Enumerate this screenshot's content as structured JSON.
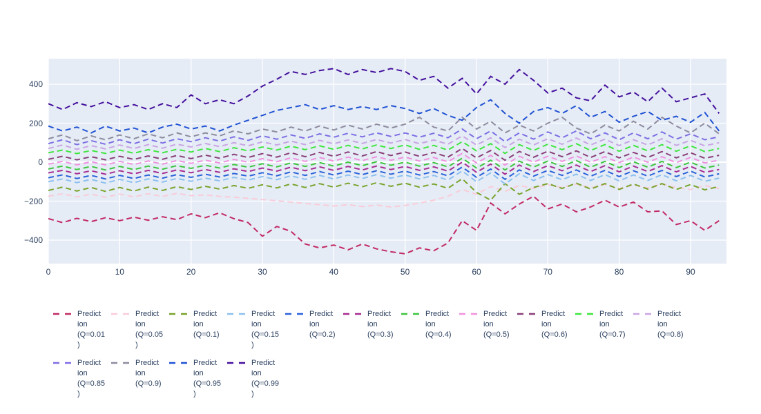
{
  "figure": {
    "plot_bg_color": "#e5ecf6",
    "grid_color": "#ffffff",
    "axis_font_color": "#2a3f5f",
    "paper_color": "#ffffff"
  },
  "chart_data": {
    "type": "line",
    "title": "",
    "xlabel": "",
    "ylabel": "",
    "line_style": "dashed",
    "legend_position": "bottom",
    "grid": true,
    "xlim": [
      0,
      95
    ],
    "ylim": [
      -520,
      531
    ],
    "x_ticks": [
      "0",
      "10",
      "20",
      "30",
      "40",
      "50",
      "60",
      "70",
      "80",
      "90"
    ],
    "x_tick_values": [
      0,
      10,
      20,
      30,
      40,
      50,
      60,
      70,
      80,
      90
    ],
    "y_ticks": [
      "400",
      "200",
      "0",
      "−200",
      "−400"
    ],
    "y_tick_values": [
      400,
      200,
      0,
      -200,
      -400
    ],
    "x": [
      0,
      2,
      4,
      6,
      8,
      10,
      12,
      14,
      16,
      18,
      20,
      22,
      24,
      26,
      28,
      30,
      32,
      34,
      36,
      38,
      40,
      42,
      44,
      46,
      48,
      50,
      52,
      54,
      56,
      58,
      60,
      62,
      64,
      66,
      68,
      70,
      72,
      74,
      76,
      78,
      80,
      82,
      84,
      86,
      88,
      90,
      92,
      94
    ],
    "series": [
      {
        "name": "Prediction (Q=0.01)",
        "label_lines": [
          "Predict",
          "ion",
          "(Q=0.01",
          ")"
        ],
        "color": "#c22a64",
        "values": [
          -290,
          -310,
          -288,
          -305,
          -285,
          -300,
          -282,
          -298,
          -280,
          -295,
          -265,
          -285,
          -260,
          -290,
          -310,
          -380,
          -330,
          -355,
          -420,
          -440,
          -425,
          -450,
          -420,
          -445,
          -460,
          -470,
          -440,
          -455,
          -415,
          -300,
          -350,
          -210,
          -265,
          -215,
          -175,
          -240,
          -215,
          -255,
          -230,
          -195,
          -230,
          -205,
          -255,
          -250,
          -320,
          -300,
          -350,
          -300
        ]
      },
      {
        "name": "Prediction (Q=0.05)",
        "label_lines": [
          "Predict",
          "ion",
          "(Q=0.05",
          ")"
        ],
        "color": "#f9ccd9",
        "values": [
          -175,
          -162,
          -178,
          -164,
          -180,
          -164,
          -178,
          -162,
          -176,
          -160,
          -172,
          -168,
          -176,
          -180,
          -186,
          -192,
          -198,
          -205,
          -212,
          -218,
          -225,
          -218,
          -228,
          -220,
          -230,
          -222,
          -210,
          -195,
          -175,
          -140,
          -165,
          -125,
          -150,
          -120,
          -135,
          -115,
          -130,
          -112,
          -132,
          -115,
          -135,
          -118,
          -132,
          -112,
          -130,
          -140,
          -120,
          -135
        ]
      },
      {
        "name": "Prediction (Q=0.1)",
        "label_lines": [
          "Predict",
          "ion",
          "(Q=0.1)"
        ],
        "color": "#7aa32c",
        "values": [
          -145,
          -128,
          -148,
          -130,
          -150,
          -130,
          -148,
          -128,
          -145,
          -126,
          -140,
          -124,
          -138,
          -120,
          -134,
          -116,
          -132,
          -112,
          -130,
          -110,
          -128,
          -108,
          -126,
          -106,
          -124,
          -108,
          -128,
          -112,
          -134,
          -85,
          -155,
          -195,
          -110,
          -165,
          -130,
          -110,
          -135,
          -108,
          -138,
          -110,
          -140,
          -112,
          -138,
          -110,
          -140,
          -115,
          -142,
          -125
        ]
      },
      {
        "name": "Prediction (Q=0.15)",
        "label_lines": [
          "Predict",
          "ion",
          "(Q=0.15",
          ")"
        ],
        "color": "#8cc0ee",
        "values": [
          -100,
          -86,
          -105,
          -88,
          -108,
          -88,
          -105,
          -86,
          -102,
          -84,
          -98,
          -82,
          -96,
          -78,
          -92,
          -74,
          -90,
          -70,
          -88,
          -68,
          -86,
          -66,
          -84,
          -64,
          -82,
          -66,
          -86,
          -68,
          -92,
          -45,
          -100,
          -55,
          -112,
          -60,
          -94,
          -64,
          -90,
          -62,
          -94,
          -64,
          -96,
          -66,
          -94,
          -64,
          -96,
          -68,
          -98,
          -82
        ]
      },
      {
        "name": "Prediction (Q=0.2)",
        "label_lines": [
          "Predict",
          "ion",
          "(Q=0.2)"
        ],
        "color": "#2a62d9",
        "values": [
          -80,
          -65,
          -84,
          -68,
          -86,
          -68,
          -84,
          -66,
          -82,
          -64,
          -78,
          -62,
          -76,
          -58,
          -72,
          -54,
          -70,
          -50,
          -68,
          -48,
          -66,
          -46,
          -64,
          -44,
          -62,
          -46,
          -66,
          -48,
          -70,
          -25,
          -78,
          -35,
          -88,
          -40,
          -72,
          -42,
          -68,
          -40,
          -72,
          -42,
          -74,
          -44,
          -72,
          -42,
          -74,
          -46,
          -76,
          -60
        ]
      },
      {
        "name": "Prediction (Q=0.3)",
        "label_lines": [
          "Predict",
          "ion",
          "(Q=0.3)"
        ],
        "color": "#a62c91",
        "values": [
          -55,
          -42,
          -60,
          -44,
          -62,
          -44,
          -60,
          -42,
          -58,
          -40,
          -54,
          -38,
          -52,
          -34,
          -48,
          -30,
          -46,
          -26,
          -44,
          -24,
          -42,
          -22,
          -40,
          -20,
          -38,
          -22,
          -42,
          -24,
          -46,
          0,
          -52,
          -10,
          -62,
          -15,
          -48,
          -18,
          -44,
          -15,
          -48,
          -18,
          -50,
          -20,
          -48,
          -18,
          -50,
          -22,
          -52,
          -38
        ]
      },
      {
        "name": "Prediction (Q=0.4)",
        "label_lines": [
          "Predict",
          "ion",
          "(Q=0.4)"
        ],
        "color": "#3ec43e",
        "values": [
          -35,
          -20,
          -38,
          -22,
          -40,
          -22,
          -38,
          -20,
          -36,
          -18,
          -32,
          -16,
          -30,
          -12,
          -26,
          -8,
          -24,
          -4,
          -22,
          -2,
          -20,
          0,
          -18,
          2,
          -16,
          0,
          -20,
          -2,
          -24,
          20,
          -30,
          10,
          -40,
          5,
          -25,
          5,
          -22,
          8,
          -26,
          4,
          -28,
          2,
          -26,
          4,
          -28,
          0,
          -30,
          -15
        ]
      },
      {
        "name": "Prediction (Q=0.5)",
        "label_lines": [
          "Predict",
          "ion",
          "(Q=0.5)"
        ],
        "color": "#ef92de",
        "values": [
          -10,
          4,
          -14,
          2,
          -14,
          4,
          -12,
          6,
          -10,
          8,
          -6,
          10,
          -4,
          14,
          0,
          18,
          2,
          22,
          4,
          24,
          6,
          26,
          8,
          28,
          10,
          26,
          6,
          24,
          2,
          45,
          -4,
          35,
          -15,
          30,
          0,
          30,
          4,
          32,
          0,
          28,
          -2,
          26,
          0,
          28,
          -2,
          24,
          -4,
          10
        ]
      },
      {
        "name": "Prediction (Q=0.6)",
        "label_lines": [
          "Predict",
          "ion",
          "(Q=0.6)"
        ],
        "color": "#8a3e78",
        "values": [
          15,
          30,
          12,
          28,
          12,
          30,
          14,
          32,
          15,
          34,
          18,
          36,
          20,
          40,
          24,
          44,
          26,
          48,
          28,
          50,
          30,
          52,
          32,
          54,
          34,
          52,
          30,
          50,
          26,
          70,
          22,
          60,
          10,
          55,
          25,
          56,
          28,
          58,
          24,
          54,
          22,
          50,
          24,
          54,
          22,
          48,
          20,
          35
        ]
      },
      {
        "name": "Prediction (Q=0.7)",
        "label_lines": [
          "Predict",
          "ion",
          "(Q=0.7)"
        ],
        "color": "#3fe53f",
        "values": [
          48,
          62,
          44,
          60,
          45,
          62,
          46,
          64,
          48,
          66,
          52,
          70,
          54,
          74,
          58,
          78,
          62,
          82,
          64,
          84,
          66,
          86,
          68,
          88,
          70,
          88,
          66,
          86,
          62,
          105,
          58,
          95,
          45,
          90,
          60,
          92,
          64,
          95,
          60,
          90,
          56,
          86,
          58,
          90,
          56,
          84,
          54,
          70
        ]
      },
      {
        "name": "Prediction (Q=0.8)",
        "label_lines": [
          "Predict",
          "ion",
          "(Q=0.8)"
        ],
        "color": "#c9a5e3",
        "values": [
          70,
          88,
          66,
          85,
          68,
          88,
          70,
          90,
          72,
          92,
          78,
          96,
          80,
          100,
          84,
          104,
          88,
          108,
          90,
          112,
          94,
          114,
          96,
          116,
          98,
          116,
          95,
          114,
          92,
          135,
          88,
          125,
          75,
          118,
          88,
          120,
          92,
          124,
          88,
          118,
          85,
          115,
          88,
          120,
          86,
          112,
          84,
          100
        ]
      },
      {
        "name": "Prediction (Q=0.85)",
        "label_lines": [
          "Predict",
          "ion",
          "(Q=0.85",
          ")"
        ],
        "color": "#7e6ee4",
        "values": [
          95,
          115,
          90,
          110,
          92,
          115,
          95,
          118,
          98,
          120,
          105,
          125,
          108,
          130,
          112,
          135,
          118,
          140,
          122,
          145,
          128,
          148,
          130,
          150,
          132,
          150,
          128,
          148,
          125,
          170,
          120,
          160,
          105,
          150,
          118,
          155,
          125,
          160,
          120,
          150,
          115,
          150,
          120,
          155,
          118,
          145,
          115,
          130
        ]
      },
      {
        "name": "Prediction (Q=0.9)",
        "label_lines": [
          "Predict",
          "ion",
          "(Q=0.9)"
        ],
        "color": "#8d8b9e",
        "values": [
          120,
          140,
          110,
          135,
          115,
          140,
          120,
          145,
          125,
          150,
          130,
          150,
          135,
          160,
          145,
          170,
          155,
          180,
          160,
          185,
          165,
          190,
          170,
          195,
          175,
          195,
          230,
          180,
          160,
          230,
          170,
          210,
          150,
          190,
          160,
          200,
          230,
          175,
          145,
          190,
          160,
          210,
          170,
          230,
          185,
          150,
          200,
          145
        ]
      },
      {
        "name": "Prediction (Q=0.95)",
        "label_lines": [
          "Predict",
          "ion",
          "(Q=0.95",
          ")"
        ],
        "color": "#1f51d3",
        "values": [
          185,
          160,
          180,
          150,
          185,
          160,
          175,
          150,
          180,
          195,
          170,
          185,
          160,
          190,
          215,
          240,
          265,
          280,
          295,
          270,
          290,
          270,
          285,
          270,
          290,
          275,
          250,
          275,
          240,
          215,
          280,
          320,
          250,
          200,
          260,
          280,
          250,
          290,
          230,
          260,
          205,
          235,
          260,
          215,
          235,
          205,
          255,
          160
        ]
      },
      {
        "name": "Prediction (Q=0.99)",
        "label_lines": [
          "Predict",
          "ion",
          "(Q=0.99",
          ")"
        ],
        "color": "#440f9c",
        "values": [
          300,
          270,
          305,
          285,
          310,
          280,
          295,
          270,
          300,
          280,
          345,
          300,
          320,
          300,
          340,
          390,
          425,
          465,
          450,
          470,
          480,
          450,
          475,
          460,
          480,
          465,
          420,
          440,
          380,
          430,
          350,
          440,
          400,
          475,
          420,
          355,
          380,
          330,
          315,
          395,
          335,
          360,
          310,
          380,
          310,
          330,
          350,
          250
        ]
      }
    ]
  }
}
